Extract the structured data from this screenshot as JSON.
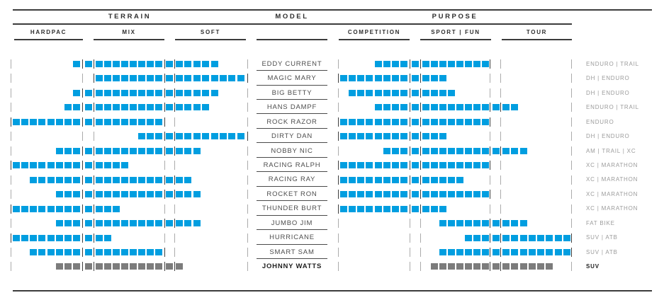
{
  "colors": {
    "blue": "#009EE0",
    "gray": "#7C7C7C",
    "rule_dark": "#3C3C3C",
    "tick_light": "#ABABAB",
    "tick_dark": "#3F3F3F"
  },
  "chart_data": {
    "type": "bar",
    "subtype": "segmented-range-chart",
    "title": "",
    "group_headers": [
      "TERRAIN",
      "MODEL",
      "PURPOSE"
    ],
    "terrain_columns": [
      "HARDPAC",
      "MIX",
      "SOFT"
    ],
    "purpose_columns": [
      "COMPETITION",
      "SPORT | FUN",
      "TOUR"
    ],
    "slots_per_axis": 26,
    "slot_layout": "8 segment slots per sub-column (0-7, 9-16, 18-25) with divider slots 8 and 17 between sub-columns; tick marks at axis start, sub-column boundaries and axis end",
    "legend_note": "blue segments = current models, gray segments = JOHNNY WATTS (SUV)",
    "rows": [
      {
        "model": "EDDY CURRENT",
        "terrain_range": [
          7,
          22
        ],
        "purpose_range": [
          4,
          16
        ],
        "category": "ENDURO | TRAIL",
        "color": "blue"
      },
      {
        "model": "MAGIC MARY",
        "terrain_range": [
          9,
          25
        ],
        "purpose_range": [
          0,
          11
        ],
        "category": "DH | ENDURO",
        "color": "blue"
      },
      {
        "model": "BIG BETTY",
        "terrain_range": [
          7,
          22
        ],
        "purpose_range": [
          1,
          12
        ],
        "category": "DH | ENDURO",
        "color": "blue"
      },
      {
        "model": "HANS DAMPF",
        "terrain_range": [
          6,
          21
        ],
        "purpose_range": [
          4,
          19
        ],
        "category": "ENDURO | TRAIL",
        "color": "blue"
      },
      {
        "model": "ROCK RAZOR",
        "terrain_range": [
          0,
          16
        ],
        "purpose_range": [
          0,
          16
        ],
        "category": "ENDURO",
        "color": "blue"
      },
      {
        "model": "DIRTY DAN",
        "terrain_range": [
          14,
          25
        ],
        "purpose_range": [
          0,
          11
        ],
        "category": "DH | ENDURO",
        "color": "blue"
      },
      {
        "model": "NOBBY NIC",
        "terrain_range": [
          5,
          20
        ],
        "purpose_range": [
          5,
          20
        ],
        "category": "AM | TRAIL | XC",
        "color": "blue"
      },
      {
        "model": "RACING RALPH",
        "terrain_range": [
          0,
          12
        ],
        "purpose_range": [
          0,
          16
        ],
        "category": "XC | MARATHON",
        "color": "blue"
      },
      {
        "model": "RACING RAY",
        "terrain_range": [
          2,
          19
        ],
        "purpose_range": [
          0,
          13
        ],
        "category": "XC | MARATHON",
        "color": "blue"
      },
      {
        "model": "ROCKET RON",
        "terrain_range": [
          5,
          20
        ],
        "purpose_range": [
          0,
          16
        ],
        "category": "XC | MARATHON",
        "color": "blue"
      },
      {
        "model": "THUNDER BURT",
        "terrain_range": [
          0,
          11
        ],
        "purpose_range": [
          0,
          11
        ],
        "category": "XC | MARATHON",
        "color": "blue"
      },
      {
        "model": "JUMBO JIM",
        "terrain_range": [
          5,
          20
        ],
        "purpose_range": [
          11,
          20
        ],
        "category": "FAT BIKE",
        "color": "blue"
      },
      {
        "model": "HURRICANE",
        "terrain_range": [
          0,
          10
        ],
        "purpose_range": [
          14,
          25
        ],
        "category": "SUV | ATB",
        "color": "blue"
      },
      {
        "model": "SMART SAM",
        "terrain_range": [
          2,
          16
        ],
        "purpose_range": [
          11,
          25
        ],
        "category": "SUV | ATB",
        "color": "blue"
      },
      {
        "model": "JOHNNY WATTS",
        "terrain_range": [
          5,
          18
        ],
        "purpose_range": [
          10,
          23
        ],
        "category": "SUV",
        "color": "gray"
      }
    ]
  }
}
